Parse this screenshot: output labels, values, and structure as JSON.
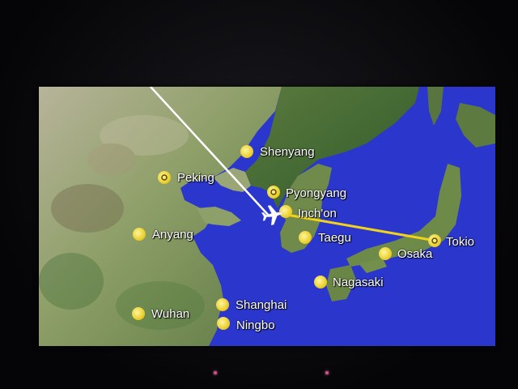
{
  "map": {
    "route_color": "#f2d21b",
    "track_color": "#ffffff",
    "city_dot_color": "#f2dc32",
    "water_color": "#2a33c8",
    "land_color": "#8a9a62"
  },
  "cities": [
    {
      "key": "shenyang",
      "name": "Shenyang",
      "type": "city"
    },
    {
      "key": "peking",
      "name": "Peking",
      "type": "capital"
    },
    {
      "key": "pyongyang",
      "name": "Pyongyang",
      "type": "capital"
    },
    {
      "key": "inchon",
      "name": "Inch'on",
      "type": "city"
    },
    {
      "key": "anyang",
      "name": "Anyang",
      "type": "city"
    },
    {
      "key": "taegu",
      "name": "Taegu",
      "type": "city"
    },
    {
      "key": "tokio",
      "name": "Tokio",
      "type": "capital"
    },
    {
      "key": "osaka",
      "name": "Osaka",
      "type": "city"
    },
    {
      "key": "nagasaki",
      "name": "Nagasaki",
      "type": "city"
    },
    {
      "key": "shanghai",
      "name": "Shanghai",
      "type": "city"
    },
    {
      "key": "wuhan",
      "name": "Wuhan",
      "type": "city"
    },
    {
      "key": "ningbo",
      "name": "Ningbo",
      "type": "city"
    }
  ],
  "aircraft": {
    "icon": "airplane-icon"
  }
}
